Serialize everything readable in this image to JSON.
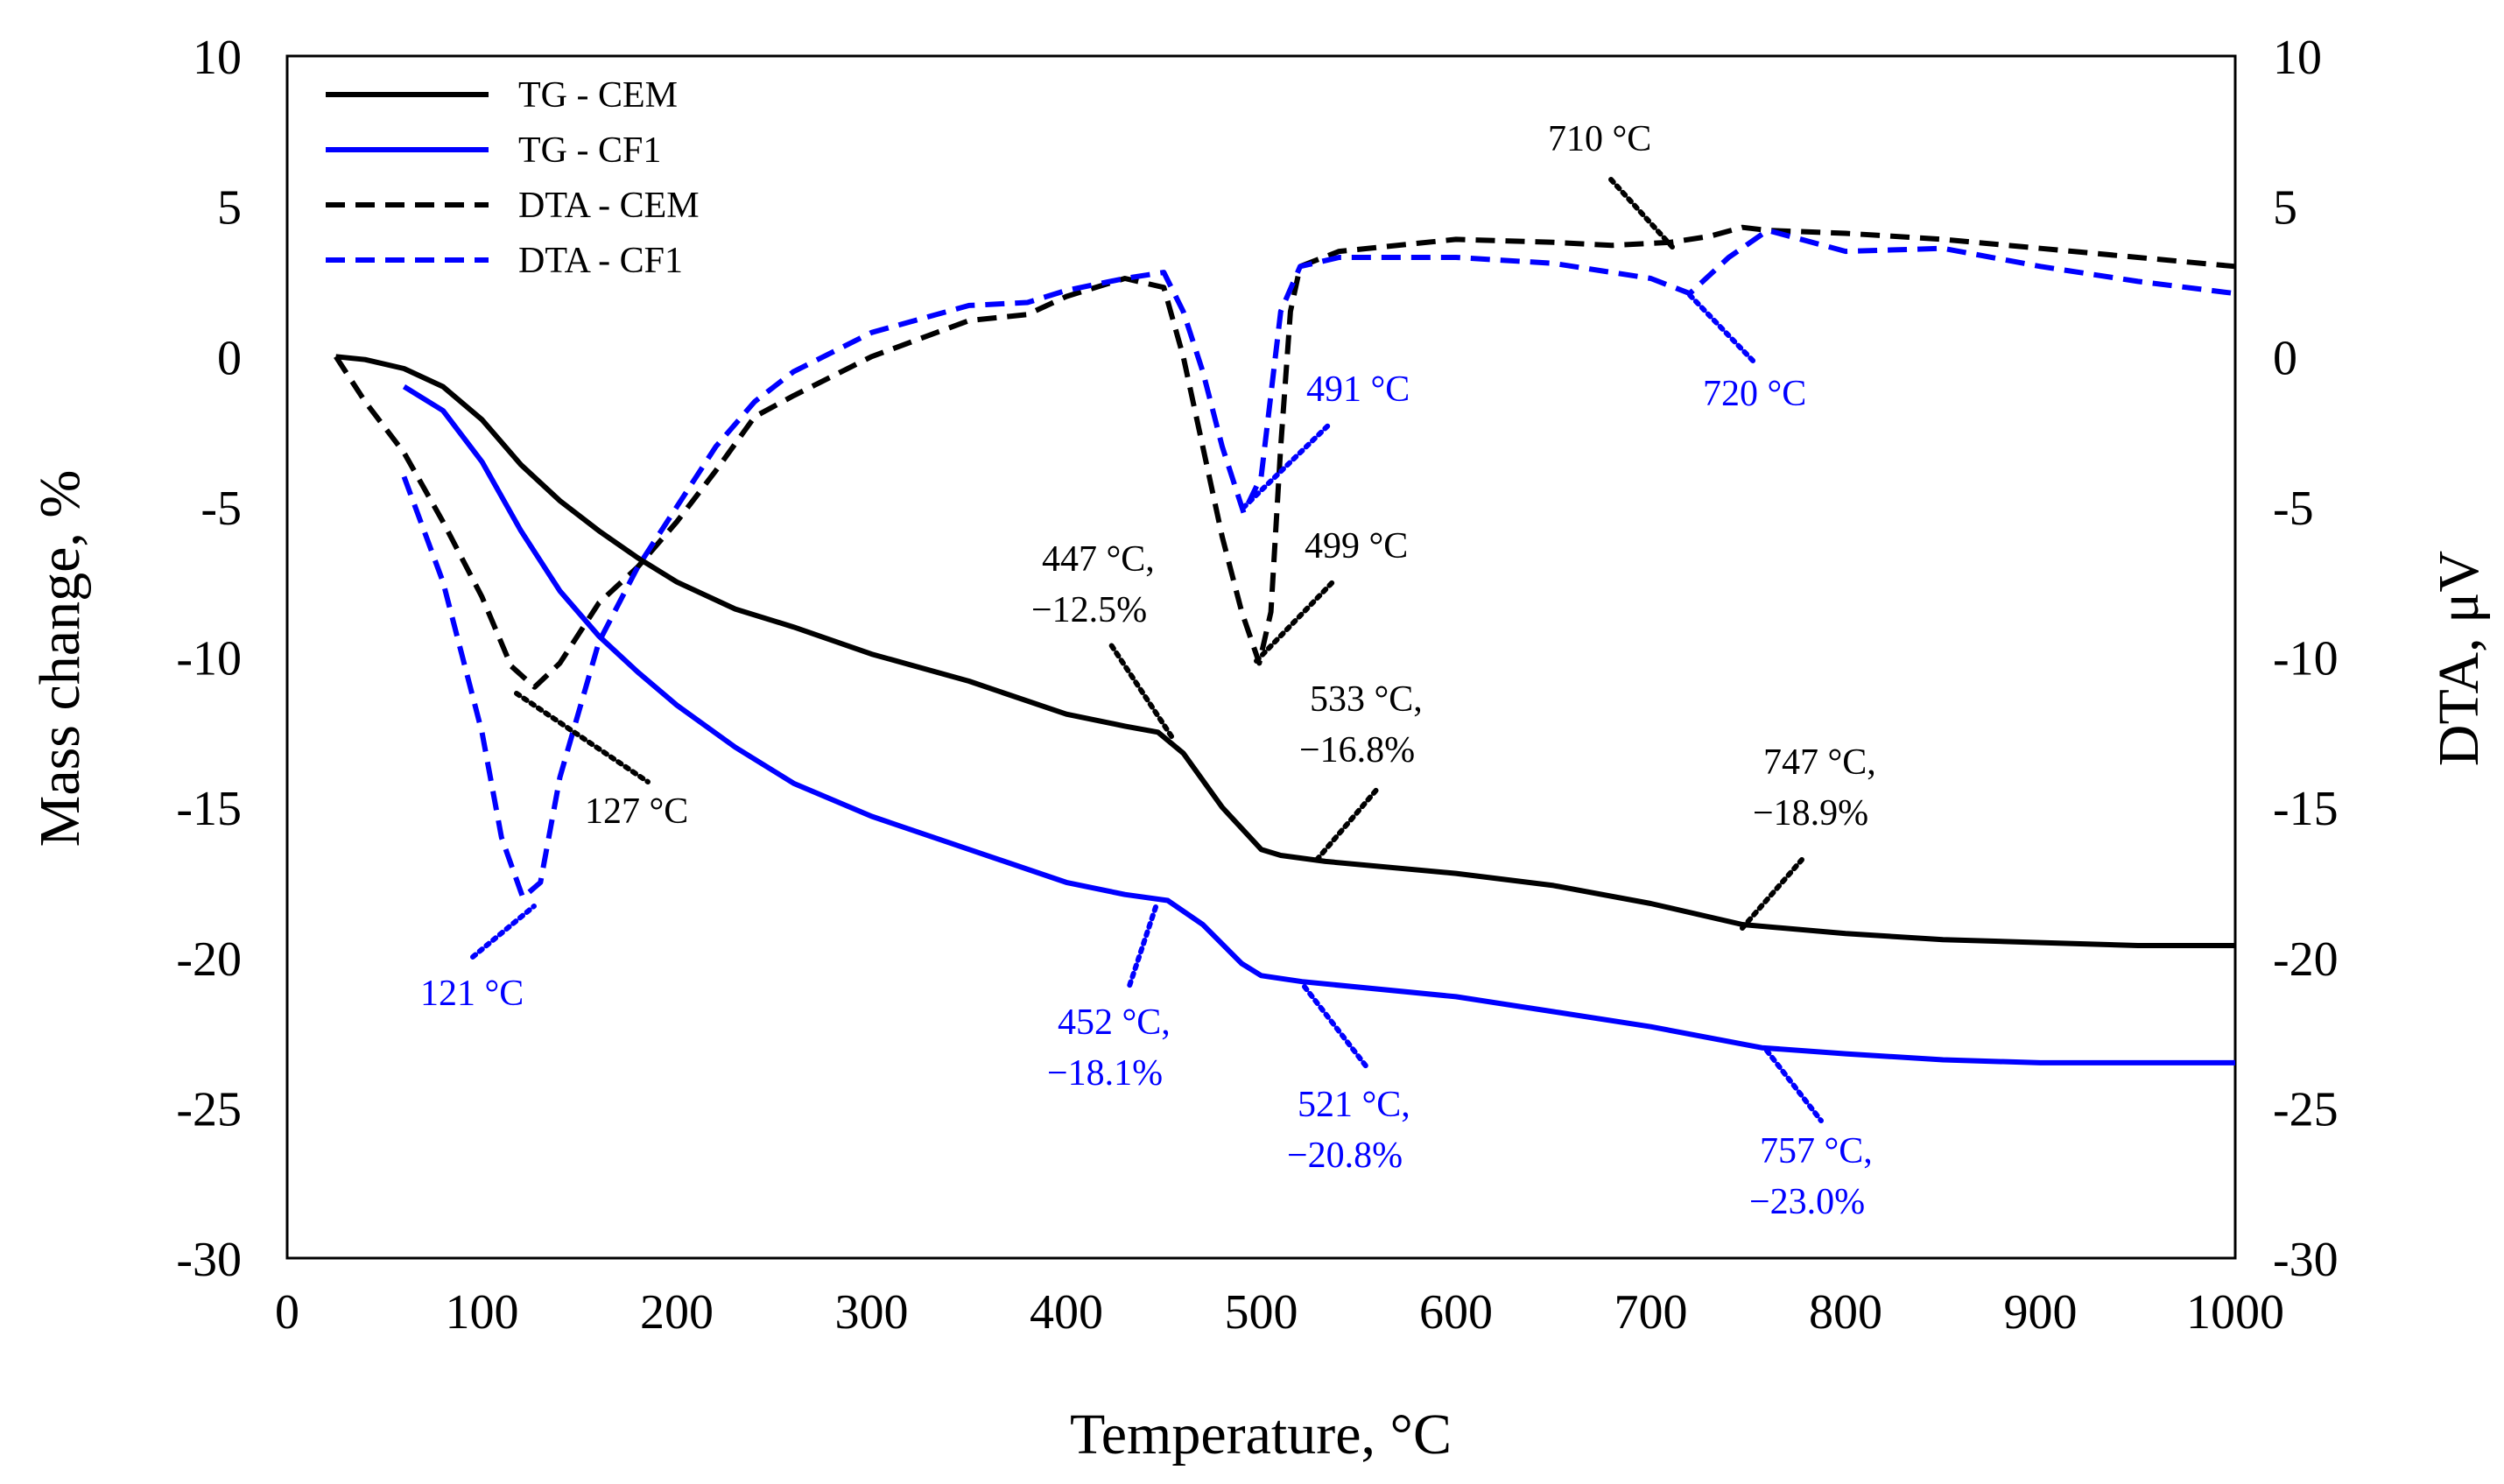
{
  "chart_data": {
    "type": "line",
    "title": "",
    "xlabel": "Temperature, °C",
    "ylabel_left": "Mass change, %",
    "ylabel_right": "DTA, μV",
    "xlim": [
      0,
      1000
    ],
    "ylim_left": [
      -30,
      10
    ],
    "ylim_right": [
      -30,
      10
    ],
    "x_ticks": [
      "0",
      "100",
      "200",
      "300",
      "400",
      "500",
      "600",
      "700",
      "800",
      "900",
      "1000"
    ],
    "y_ticks_left": [
      "10",
      "5",
      "0",
      "-5",
      "-10",
      "-15",
      "-20",
      "-25",
      "-30"
    ],
    "y_ticks_right": [
      "10",
      "5",
      "0",
      "-5",
      "-10",
      "-15",
      "-20",
      "-25",
      "-30"
    ],
    "legend_position": "top-left",
    "colors": {
      "cem": "#000000",
      "cf1": "#0000ff"
    },
    "series": [
      {
        "name": "TG - CEM",
        "axis": "left",
        "style": "solid",
        "color": "#000000",
        "x": [
          25,
          40,
          60,
          80,
          100,
          120,
          140,
          160,
          180,
          200,
          230,
          260,
          300,
          350,
          400,
          430,
          447,
          460,
          480,
          500,
          510,
          533,
          600,
          650,
          700,
          747,
          800,
          850,
          900,
          950,
          1000
        ],
        "y": [
          0,
          -0.1,
          -0.4,
          -1.0,
          -2.1,
          -3.6,
          -4.8,
          -5.8,
          -6.7,
          -7.5,
          -8.4,
          -9.0,
          -9.9,
          -10.8,
          -11.9,
          -12.3,
          -12.5,
          -13.2,
          -15.0,
          -16.4,
          -16.6,
          -16.8,
          -17.2,
          -17.6,
          -18.2,
          -18.9,
          -19.2,
          -19.4,
          -19.5,
          -19.6,
          -19.6
        ]
      },
      {
        "name": "TG - CF1",
        "axis": "left",
        "style": "solid",
        "color": "#0000ff",
        "x": [
          60,
          80,
          100,
          120,
          140,
          160,
          180,
          200,
          230,
          260,
          300,
          350,
          400,
          430,
          452,
          470,
          490,
          500,
          521,
          600,
          650,
          700,
          757,
          800,
          850,
          900,
          950,
          1000
        ],
        "y": [
          -1,
          -1.8,
          -3.5,
          -5.8,
          -7.8,
          -9.3,
          -10.5,
          -11.6,
          -13.0,
          -14.2,
          -15.3,
          -16.4,
          -17.5,
          -17.9,
          -18.1,
          -18.9,
          -20.2,
          -20.6,
          -20.8,
          -21.3,
          -21.8,
          -22.3,
          -23.0,
          -23.2,
          -23.4,
          -23.5,
          -23.5,
          -23.5
        ]
      },
      {
        "name": "DTA - CEM",
        "axis": "right",
        "style": "dashed",
        "color": "#000000",
        "x": [
          25,
          40,
          60,
          80,
          100,
          115,
          127,
          140,
          160,
          180,
          200,
          220,
          240,
          260,
          300,
          350,
          380,
          400,
          430,
          450,
          460,
          470,
          480,
          490,
          499,
          505,
          510,
          515,
          520,
          540,
          600,
          650,
          680,
          710,
          730,
          747,
          760,
          800,
          850,
          900,
          950,
          1000
        ],
        "y": [
          0,
          -1.5,
          -3.2,
          -5.5,
          -8,
          -10.3,
          -11,
          -10.2,
          -8.2,
          -7,
          -5.5,
          -3.8,
          -2,
          -1.3,
          0,
          1.2,
          1.4,
          2.0,
          2.6,
          2.3,
          0,
          -3,
          -6,
          -8.5,
          -10.2,
          -8.5,
          -3,
          1.5,
          3.0,
          3.5,
          3.9,
          3.8,
          3.7,
          3.8,
          4.0,
          4.3,
          4.2,
          4.1,
          3.9,
          3.6,
          3.3,
          3.0
        ]
      },
      {
        "name": "DTA - CF1",
        "axis": "right",
        "style": "dashed",
        "color": "#0000ff",
        "x": [
          60,
          80,
          100,
          110,
          121,
          130,
          140,
          160,
          180,
          200,
          220,
          240,
          260,
          300,
          350,
          380,
          400,
          430,
          450,
          460,
          470,
          480,
          491,
          500,
          510,
          520,
          540,
          600,
          650,
          700,
          720,
          740,
          760,
          800,
          850,
          900,
          950,
          1000
        ],
        "y": [
          -4,
          -7.5,
          -12.5,
          -16,
          -18,
          -17.5,
          -14,
          -9.5,
          -7,
          -5,
          -3,
          -1.5,
          -0.5,
          0.8,
          1.7,
          1.8,
          2.2,
          2.6,
          2.8,
          1.5,
          -0.5,
          -3,
          -5.2,
          -4,
          1.5,
          3.0,
          3.3,
          3.3,
          3.1,
          2.6,
          2.1,
          3.3,
          4.2,
          3.5,
          3.6,
          3.0,
          2.5,
          2.1
        ]
      }
    ],
    "annotations": [
      {
        "text": "127 °C",
        "color": "#000000"
      },
      {
        "text": "121 °C",
        "color": "#0000ff"
      },
      {
        "text": "491 °C",
        "color": "#0000ff"
      },
      {
        "text": "499 °C",
        "color": "#000000"
      },
      {
        "text": "710 °C",
        "color": "#000000"
      },
      {
        "text": "720 °C",
        "color": "#0000ff"
      },
      {
        "text": "447 °C,",
        "text2": "−12.5%",
        "color": "#000000"
      },
      {
        "text": "533 °C,",
        "text2": "−16.8%",
        "color": "#000000"
      },
      {
        "text": "747 °C,",
        "text2": "−18.9%",
        "color": "#000000"
      },
      {
        "text": "452 °C,",
        "text2": "−18.1%",
        "color": "#0000ff"
      },
      {
        "text": "521 °C,",
        "text2": "−20.8%",
        "color": "#0000ff"
      },
      {
        "text": "757 °C,",
        "text2": "−23.0%",
        "color": "#0000ff"
      }
    ]
  }
}
